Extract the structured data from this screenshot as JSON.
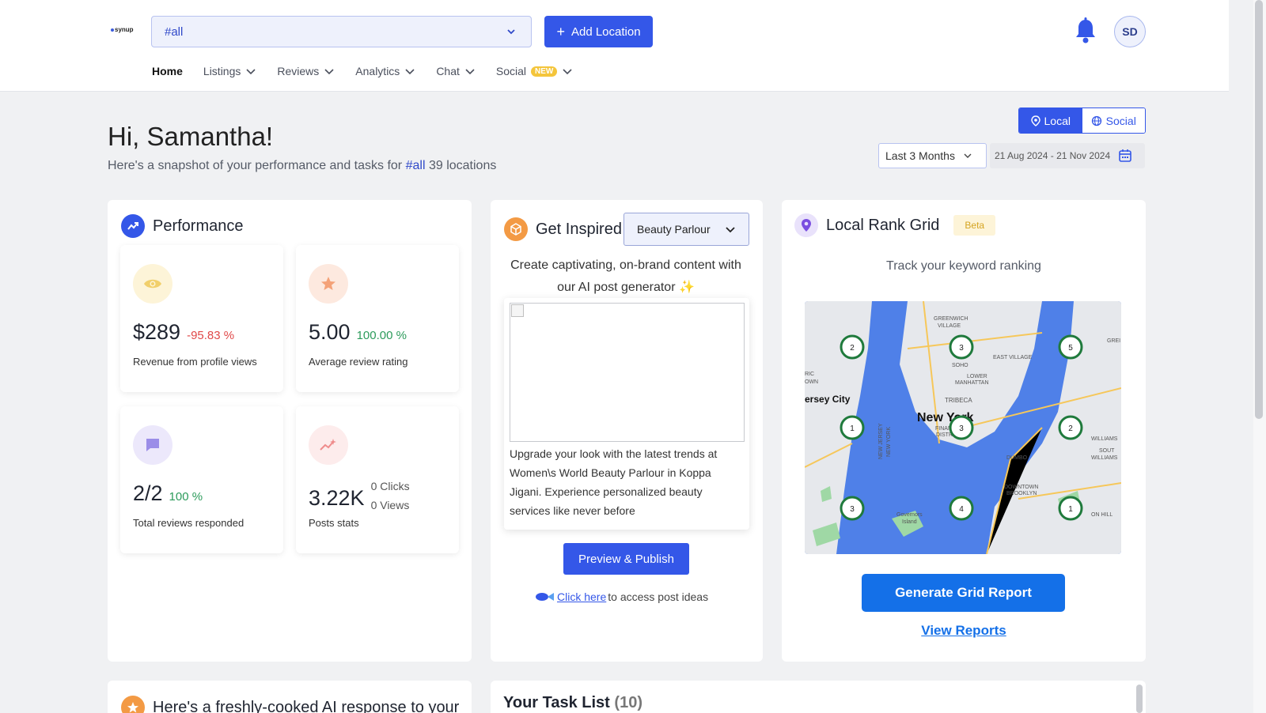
{
  "header": {
    "logo_text": "synup",
    "location_select": "#all",
    "add_location_label": "Add Location",
    "avatar_initials": "SD"
  },
  "nav": {
    "items": [
      {
        "label": "Home"
      },
      {
        "label": "Listings"
      },
      {
        "label": "Reviews"
      },
      {
        "label": "Analytics"
      },
      {
        "label": "Chat"
      },
      {
        "label": "Social",
        "badge": "NEW"
      }
    ]
  },
  "greeting": {
    "title": "Hi, Samantha!",
    "snapshot_prefix": "Here's a snapshot of your performance and tasks for",
    "snapshot_tag": "#all",
    "snapshot_suffix": "39 locations"
  },
  "view_toggle": {
    "local": "Local",
    "social": "Social",
    "active": "Local"
  },
  "date_filter": {
    "range": "Last 3 Months",
    "dates": "21 Aug 2024 - 21 Nov 2024"
  },
  "performance": {
    "title": "Performance",
    "stats": [
      {
        "value": "$289",
        "change": "-95.83 %",
        "label": "Revenue from profile views"
      },
      {
        "value": "5.00",
        "change": "100.00 %",
        "label": "Average review rating"
      },
      {
        "value": "2/2",
        "change": "100 %",
        "label": "Total reviews responded"
      },
      {
        "value": "3.22K",
        "clicks": "0 Clicks",
        "views": "0 Views",
        "label": "Posts stats"
      }
    ]
  },
  "inspire": {
    "title": "Get Inspired",
    "category": "Beauty Parlour",
    "description_line1": "Create captivating, on-brand content with",
    "description_line2": "our AI post generator ✨",
    "post_text": "Upgrade your look with the latest trends at Women\\s World Beauty Parlour in Koppa Jigani. Experience personalized beauty services like never before",
    "publish_label": "Preview & Publish",
    "click_here": "Click here",
    "click_here_suffix": "to access post ideas"
  },
  "rank_grid": {
    "title": "Local Rank Grid",
    "badge": "Beta",
    "subtitle": "Track your keyword ranking",
    "map_labels": {
      "greenwich": "GREENWICH VILLAGE",
      "east_village": "EAST VILLAGE",
      "soho": "SOHO",
      "lower_manhattan": "LOWER MANHATTAN",
      "jersey_city": "ersey City",
      "tribeca": "TRIBECA",
      "new_york": "New York",
      "financial": "FINANCIAL DISTRICT",
      "dumbo": "DUMBO",
      "downtown_brooklyn": "DOWNTOWN BROOKLYN",
      "governors": "Governors Island",
      "williamsburg": "WILLIAMS",
      "south_williams": "SOUT WILLIAMS",
      "fort_greene": "ON HILL",
      "ric": "RIC",
      "own": "OWN",
      "nj": "NEW JERSEY",
      "ny": "NEW YORK",
      "gre": "GREI"
    },
    "pins": [
      "2",
      "3",
      "5",
      "1",
      "3",
      "2",
      "3",
      "4",
      "1"
    ],
    "generate_label": "Generate Grid Report",
    "view_reports_label": "View Reports"
  },
  "ai_response": {
    "title": "Here's a freshly-cooked AI response to your"
  },
  "tasks": {
    "title": "Your Task List",
    "count": "(10)"
  },
  "colors": {
    "primary": "#3457e8",
    "cta": "#1470e8",
    "red": "#e04848",
    "green": "#2c9b5b"
  }
}
